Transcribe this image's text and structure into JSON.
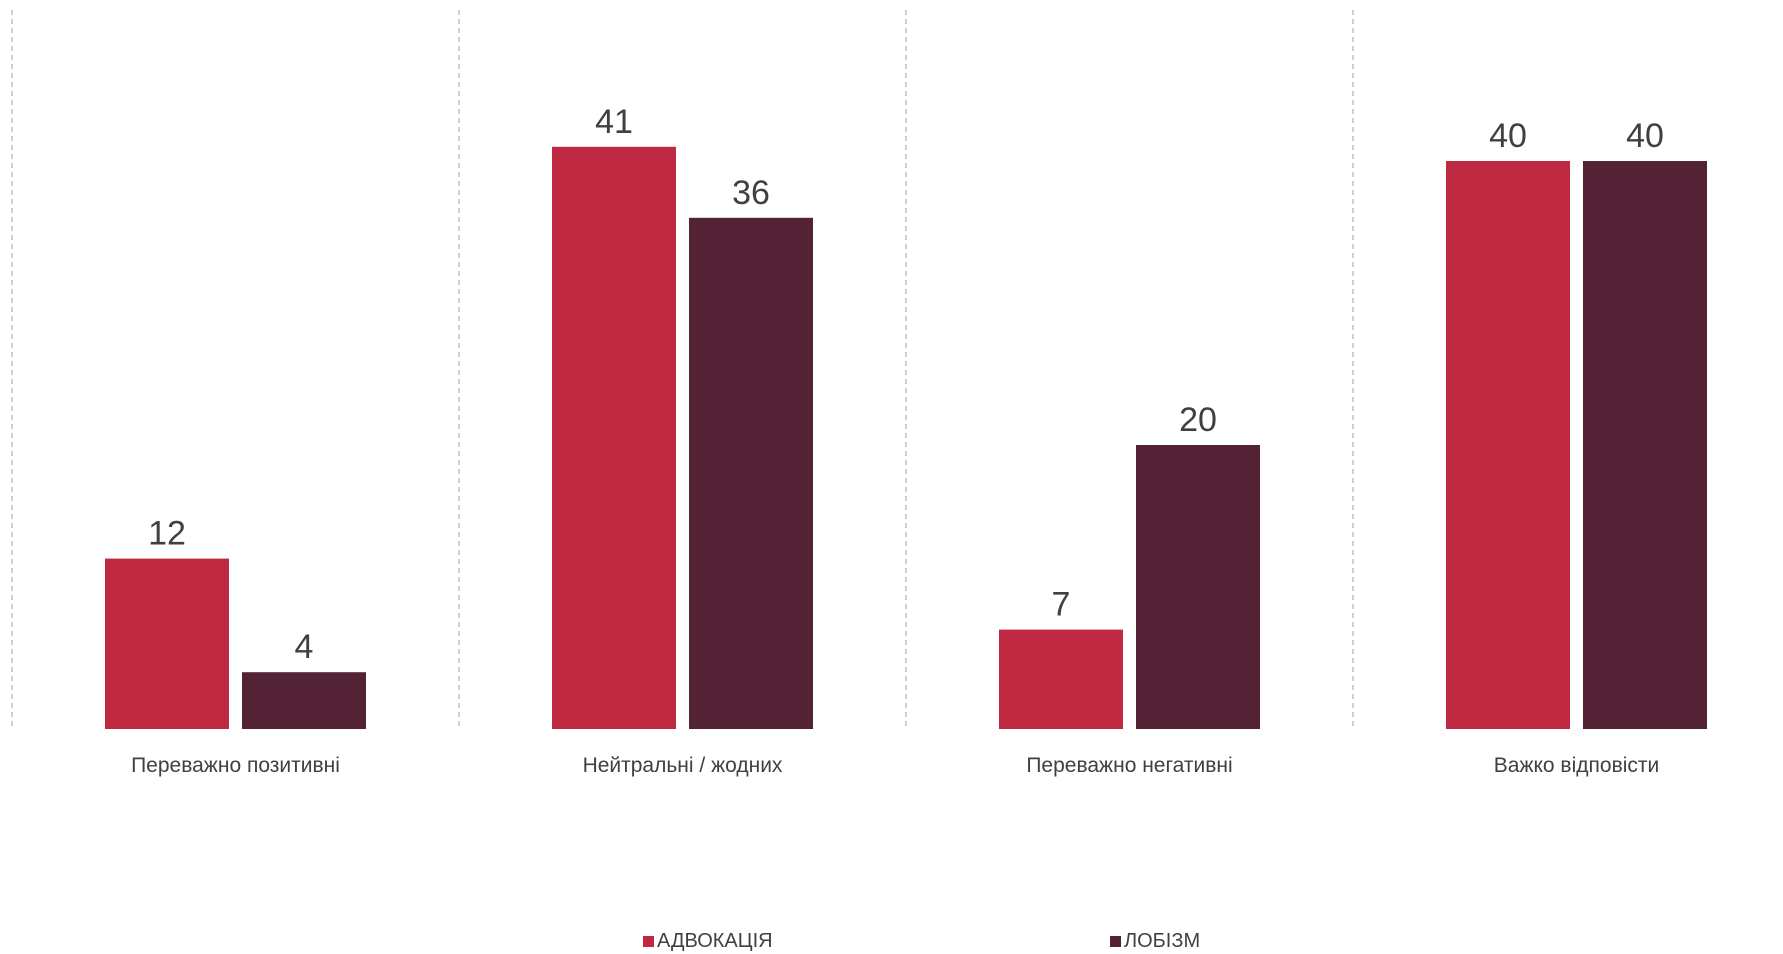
{
  "chart_data": {
    "type": "bar",
    "categories": [
      "Переважно позитивні",
      "Нейтральні / жодних",
      "Переважно негативні",
      "Важко відповісти"
    ],
    "series": [
      {
        "name": "АДВОКАЦІЯ",
        "values": [
          12,
          41,
          7,
          40
        ],
        "color": "#c02942"
      },
      {
        "name": "ЛОБІЗМ",
        "values": [
          4,
          36,
          20,
          40
        ],
        "color": "#532335"
      }
    ],
    "ylim": [
      0,
      45
    ],
    "grid": false,
    "category_separators": true,
    "legend_position": "bottom",
    "data_labels": true
  }
}
